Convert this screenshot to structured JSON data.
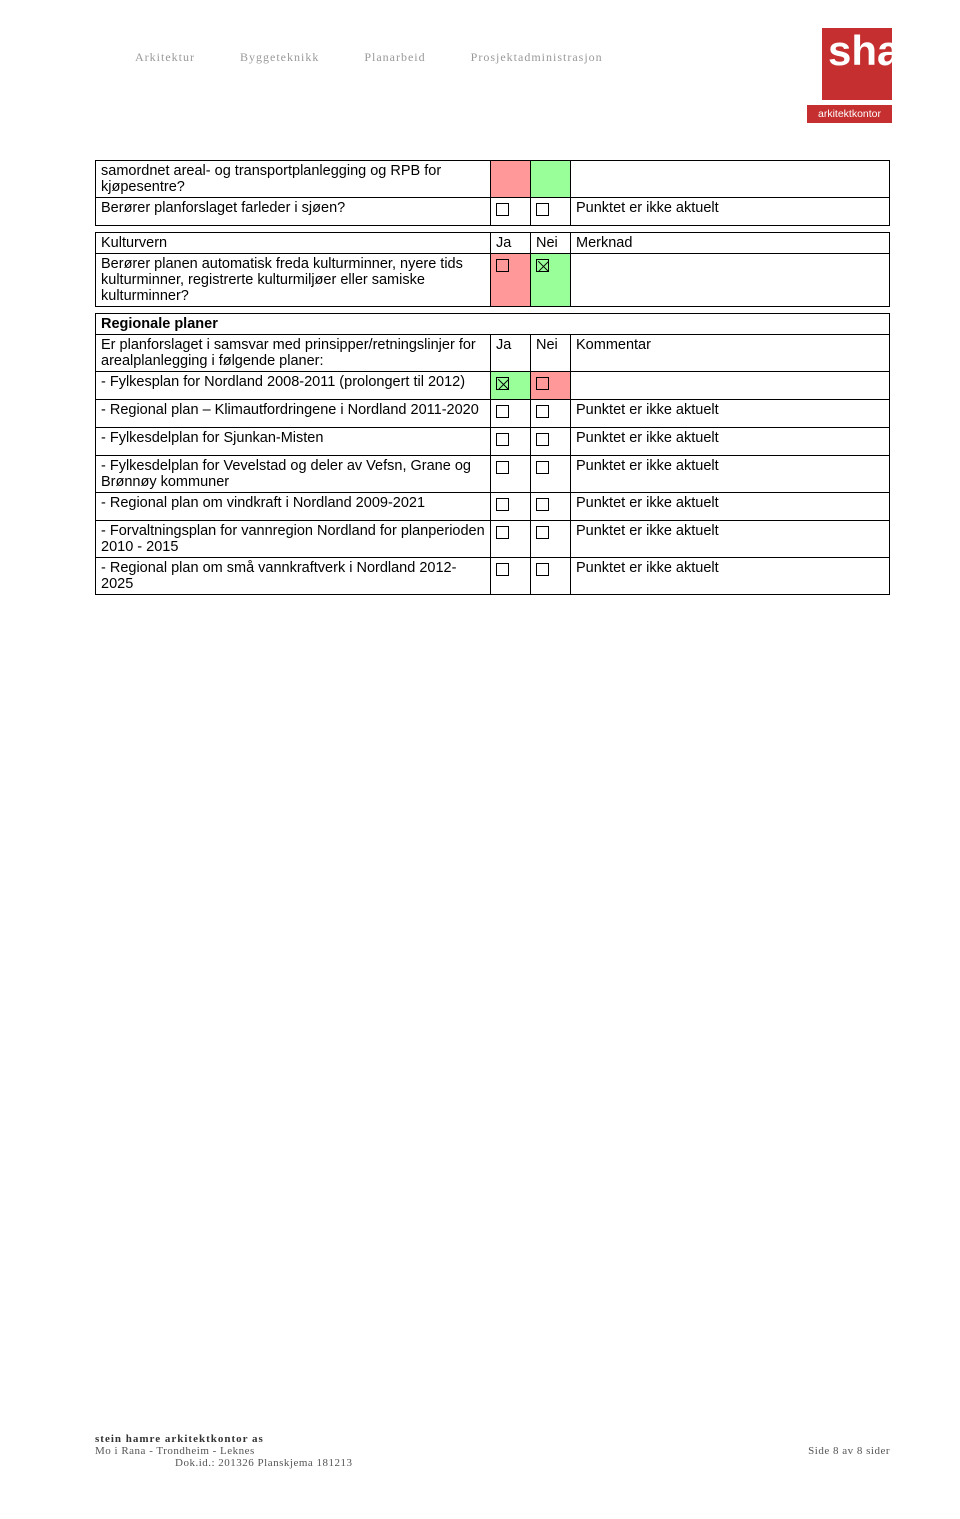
{
  "header": {
    "nav": [
      "Arkitektur",
      "Byggeteknikk",
      "Planarbeid",
      "Prosjektadministrasjon"
    ],
    "logo_text": "sha",
    "logo_sub": "arkitektkontor"
  },
  "colors": {
    "bg_green": "#99ff99",
    "bg_red": "#ff9999",
    "logo_red": "#c52f2f"
  },
  "table1": {
    "rows": [
      {
        "desc": "samordnet areal- og transportplanlegging og RPB for kjøpesentre?",
        "ja": "red_empty",
        "nei": "green_empty",
        "merk": ""
      },
      {
        "desc": "Berører planforslaget farleder i sjøen?",
        "ja": "empty",
        "nei": "empty",
        "merk": "Punktet er ikke aktuelt"
      }
    ]
  },
  "table2": {
    "header": {
      "title": "Kulturvern",
      "ja": "Ja",
      "nei": "Nei",
      "merk": "Merknad"
    },
    "rows": [
      {
        "desc": "Berører planen automatisk freda kulturminner, nyere tids kulturminner, registrerte kulturmiljøer eller samiske kulturminner?",
        "ja": "red_empty",
        "nei": "green_x",
        "merk": ""
      }
    ]
  },
  "section3_title": "Regionale planer",
  "table3": {
    "header": {
      "title": "Er planforslaget i samsvar med prinsipper/retningslinjer for arealplanlegging i følgende planer:",
      "ja": "Ja",
      "nei": "Nei",
      "merk": "Kommentar"
    },
    "rows": [
      {
        "desc": "- Fylkesplan for Nordland 2008-2011 (prolongert til 2012)",
        "ja": "green_x",
        "nei": "red_empty",
        "merk": ""
      },
      {
        "desc": "- Regional plan – Klimautfordringene i Nordland 2011-2020",
        "ja": "empty",
        "nei": "empty",
        "merk": "Punktet er ikke aktuelt"
      },
      {
        "desc": "- Fylkesdelplan for Sjunkan-Misten",
        "ja": "empty",
        "nei": "empty",
        "merk": "Punktet er ikke aktuelt"
      },
      {
        "desc": "- Fylkesdelplan for Vevelstad og deler av Vefsn, Grane og Brønnøy kommuner",
        "ja": "empty",
        "nei": "empty",
        "merk": "Punktet er ikke aktuelt"
      },
      {
        "desc": "- Regional plan om vindkraft i Nordland 2009-2021",
        "ja": "empty",
        "nei": "empty",
        "merk": "Punktet er ikke aktuelt"
      },
      {
        "desc": " - Forvaltningsplan for vannregion Nordland for planperioden 2010 - 2015",
        "ja": "empty",
        "nei": "empty",
        "merk": "Punktet er ikke aktuelt"
      },
      {
        "desc": "- Regional plan om små vannkraftverk i Nordland 2012-2025",
        "ja": "empty",
        "nei": "empty",
        "merk": "Punktet er ikke aktuelt"
      }
    ]
  },
  "footer": {
    "name": "stein hamre arkitektkontor as",
    "line2_left": "Mo i Rana   -   Trondheim   -   Leknes",
    "line2_right": "Side 8 av 8 sider",
    "dok": "Dok.id.: 201326 Planskjema 181213"
  }
}
